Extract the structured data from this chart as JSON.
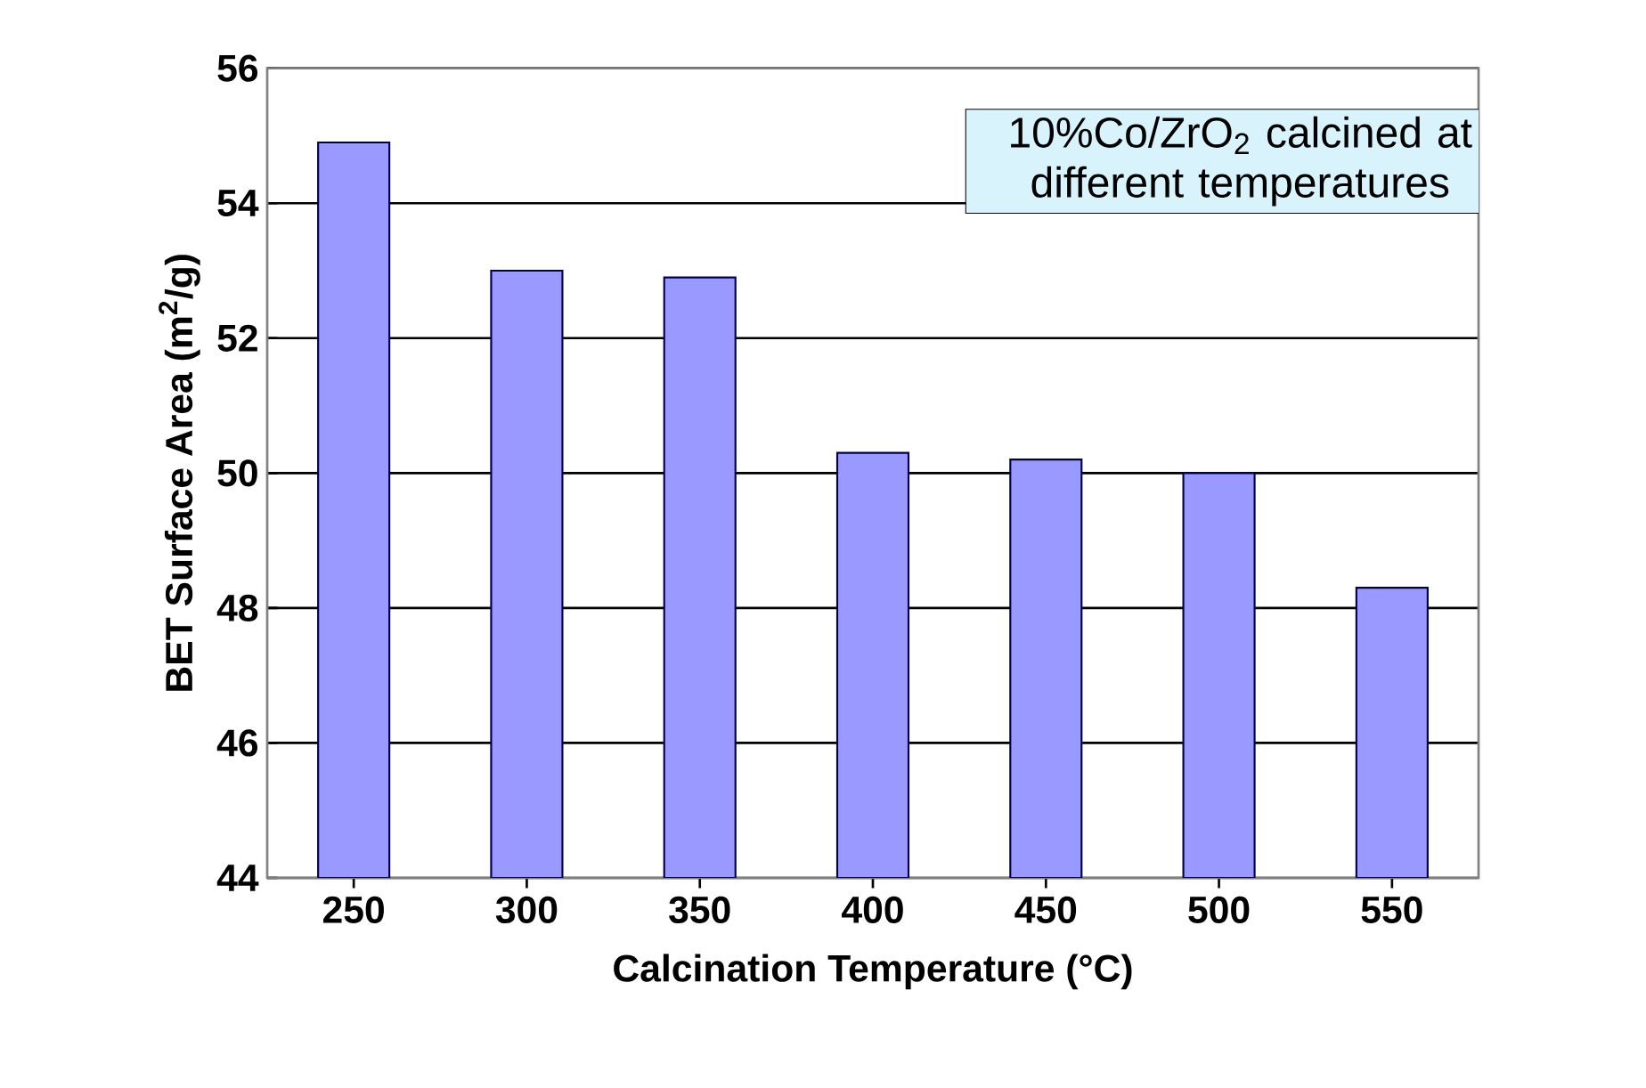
{
  "chart_data": {
    "type": "bar",
    "categories": [
      "250",
      "300",
      "350",
      "400",
      "450",
      "500",
      "550"
    ],
    "values": [
      54.9,
      53.0,
      52.9,
      50.3,
      50.2,
      50.0,
      48.3
    ],
    "color": "#9999ff",
    "xlabel": "Calcination Temperature (°C)",
    "ylabel": "BET Surface Area (m$^{2}$/g)",
    "ylim": [
      44,
      56
    ],
    "yticks": [
      44,
      46,
      48,
      50,
      52,
      54,
      56
    ],
    "grid": "y",
    "annotations": [
      "10%Co/ZrO$_{2}$ calcined at different temperatures"
    ]
  }
}
